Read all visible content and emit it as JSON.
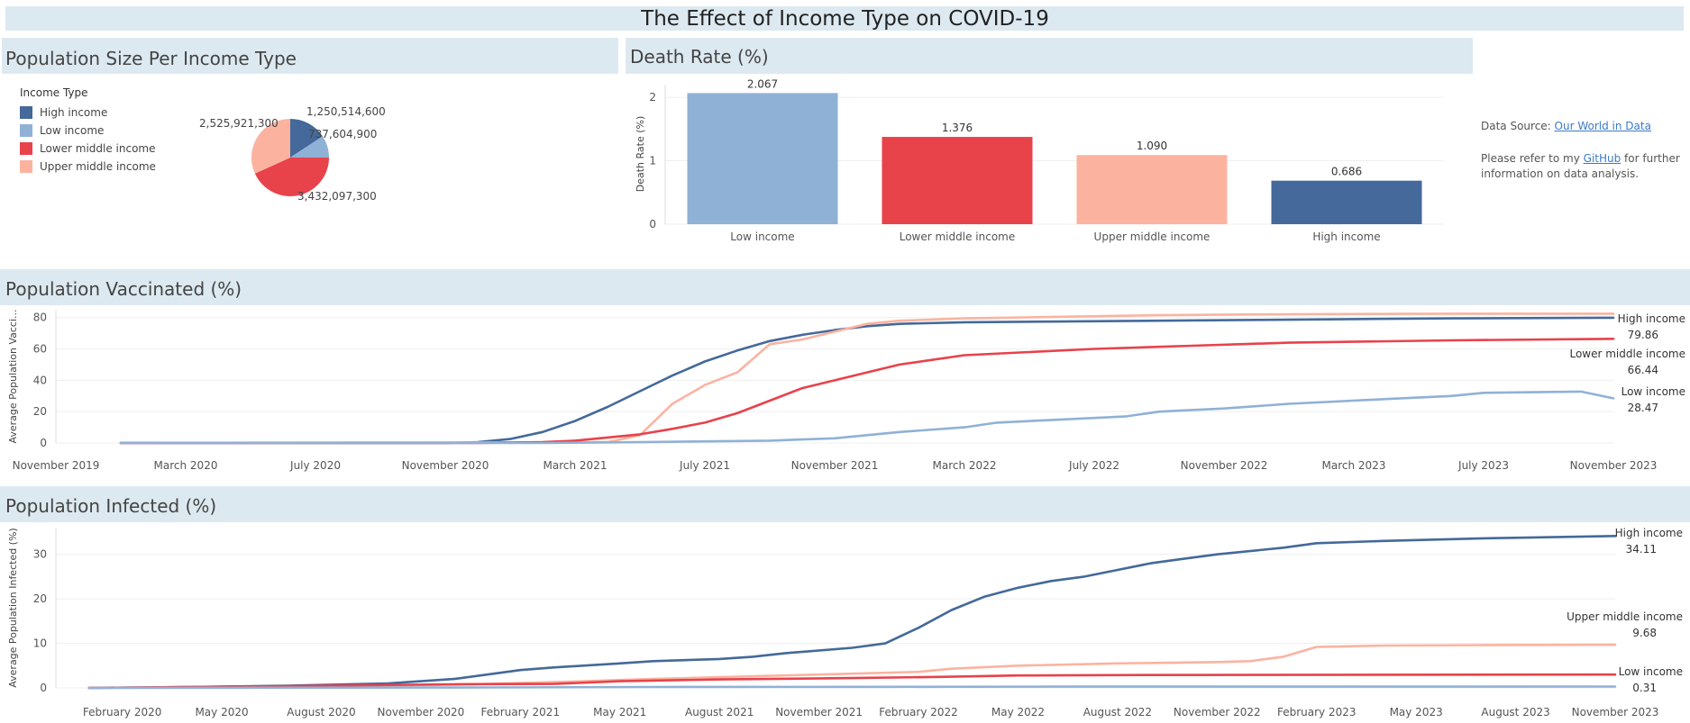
{
  "dashboard": {
    "title": "The Effect of Income Type on COVID-19",
    "sections": {
      "population": "Population Size Per Income Type",
      "death": "Death Rate (%)",
      "vaccinated": "Population Vaccinated (%)",
      "infected": "Population Infected (%)"
    },
    "source": {
      "prefix": "Data Source: ",
      "link": "Our World in Data",
      "refer_prefix": "Please refer to my ",
      "refer_link": "GitHub",
      "refer_suffix": " for further",
      "refer_line2": "information on data analysis."
    }
  },
  "colors": {
    "High income": "#44699a",
    "Low income": "#90b1d6",
    "Lower middle income": "#e8424b",
    "Upper middle income": "#fbb3a0"
  },
  "chart_data": [
    {
      "type": "pie",
      "title": "Population Size Per Income Type",
      "legend_title": "Income Type",
      "legend_placement": "top-left",
      "legend": [
        "High income",
        "Low income",
        "Lower middle income",
        "Upper middle income"
      ],
      "slices": [
        {
          "name": "High income",
          "value": 1250514600,
          "label": "1,250,514,600"
        },
        {
          "name": "Low income",
          "value": 737604900,
          "label": "737,604,900"
        },
        {
          "name": "Lower middle income",
          "value": 3432097300,
          "label": "3,432,097,300"
        },
        {
          "name": "Upper middle income",
          "value": 2525921300,
          "label": "2,525,921,300"
        }
      ]
    },
    {
      "type": "bar",
      "title": "Death Rate (%)",
      "ylabel": "Death Rate (%)",
      "ylim": [
        0,
        2.2
      ],
      "yticks": [
        0,
        1,
        2
      ],
      "categories": [
        "Low income",
        "Lower middle income",
        "Upper middle income",
        "High income"
      ],
      "values": [
        2.067,
        1.376,
        1.09,
        0.686
      ],
      "value_labels": [
        "2.067",
        "1.376",
        "1.090",
        "0.686"
      ]
    },
    {
      "type": "line",
      "title": "Population Vaccinated (%)",
      "ylabel": "Average Population Vacci...",
      "ylim": [
        0,
        85
      ],
      "yticks": [
        0,
        20,
        40,
        60,
        80
      ],
      "xlim": [
        "2019-11",
        "2023-11"
      ],
      "xticks": [
        "November 2019",
        "March 2020",
        "July 2020",
        "November 2020",
        "March 2021",
        "July 2021",
        "November 2021",
        "March 2022",
        "July 2022",
        "November 2022",
        "March 2023",
        "July 2023",
        "November 2023"
      ],
      "series": [
        {
          "name": "High income",
          "end_label": "79.86",
          "points": [
            [
              "2020-01",
              0
            ],
            [
              "2020-11",
              0
            ],
            [
              "2020-12",
              0.5
            ],
            [
              "2021-01",
              2.5
            ],
            [
              "2021-02",
              7
            ],
            [
              "2021-03",
              14
            ],
            [
              "2021-04",
              23
            ],
            [
              "2021-05",
              33
            ],
            [
              "2021-06",
              43
            ],
            [
              "2021-07",
              52
            ],
            [
              "2021-08",
              59
            ],
            [
              "2021-09",
              65
            ],
            [
              "2021-10",
              69
            ],
            [
              "2021-11",
              72
            ],
            [
              "2021-12",
              74.5
            ],
            [
              "2022-01",
              76
            ],
            [
              "2022-03",
              77
            ],
            [
              "2022-06",
              77.5
            ],
            [
              "2022-09",
              78
            ],
            [
              "2022-12",
              78.5
            ],
            [
              "2023-03",
              79
            ],
            [
              "2023-06",
              79.5
            ],
            [
              "2023-11",
              79.86
            ]
          ]
        },
        {
          "name": "Upper middle income",
          "end_label": "",
          "points": [
            [
              "2020-01",
              0
            ],
            [
              "2021-04",
              0.5
            ],
            [
              "2021-05",
              5
            ],
            [
              "2021-06",
              25
            ],
            [
              "2021-07",
              37
            ],
            [
              "2021-08",
              45
            ],
            [
              "2021-09",
              63
            ],
            [
              "2021-10",
              66
            ],
            [
              "2021-11",
              71
            ],
            [
              "2021-12",
              76
            ],
            [
              "2022-01",
              78
            ],
            [
              "2022-03",
              79.5
            ],
            [
              "2022-06",
              80.5
            ],
            [
              "2022-09",
              81.5
            ],
            [
              "2022-12",
              82
            ],
            [
              "2023-06",
              82.5
            ],
            [
              "2023-11",
              82.5
            ]
          ]
        },
        {
          "name": "Lower middle income",
          "end_label": "66.44",
          "points": [
            [
              "2020-01",
              0
            ],
            [
              "2020-12",
              0
            ],
            [
              "2021-02",
              0.5
            ],
            [
              "2021-03",
              1.5
            ],
            [
              "2021-04",
              3.5
            ],
            [
              "2021-05",
              5.5
            ],
            [
              "2021-06",
              9
            ],
            [
              "2021-07",
              13
            ],
            [
              "2021-08",
              19
            ],
            [
              "2021-09",
              27
            ],
            [
              "2021-10",
              35
            ],
            [
              "2021-11",
              40
            ],
            [
              "2021-12",
              45
            ],
            [
              "2022-01",
              50
            ],
            [
              "2022-02",
              53
            ],
            [
              "2022-03",
              56
            ],
            [
              "2022-05",
              58
            ],
            [
              "2022-07",
              60
            ],
            [
              "2022-10",
              62
            ],
            [
              "2023-01",
              64
            ],
            [
              "2023-06",
              65.5
            ],
            [
              "2023-11",
              66.44
            ]
          ]
        },
        {
          "name": "Low income",
          "end_label": "28.47",
          "points": [
            [
              "2020-01",
              0
            ],
            [
              "2021-02",
              0
            ],
            [
              "2021-05",
              0.5
            ],
            [
              "2021-09",
              1.5
            ],
            [
              "2021-11",
              3
            ],
            [
              "2021-12",
              5
            ],
            [
              "2022-01",
              7
            ],
            [
              "2022-03",
              10
            ],
            [
              "2022-04",
              13
            ],
            [
              "2022-06",
              15
            ],
            [
              "2022-08",
              17
            ],
            [
              "2022-09",
              20
            ],
            [
              "2022-11",
              22
            ],
            [
              "2023-01",
              25
            ],
            [
              "2023-04",
              28
            ],
            [
              "2023-06",
              30
            ],
            [
              "2023-07",
              32
            ],
            [
              "2023-10",
              32.8
            ],
            [
              "2023-11",
              28.47
            ]
          ]
        }
      ]
    },
    {
      "type": "line",
      "title": "Population Infected (%)",
      "ylabel": "Average Population Infected (%)",
      "ylim": [
        0,
        36
      ],
      "yticks": [
        0,
        10,
        20,
        30
      ],
      "xlim": [
        "2019-12",
        "2023-11"
      ],
      "xticks": [
        "February 2020",
        "May 2020",
        "August 2020",
        "November 2020",
        "February 2021",
        "May 2021",
        "August 2021",
        "November 2021",
        "February 2022",
        "May 2022",
        "August 2022",
        "November 2022",
        "February 2023",
        "May 2023",
        "August 2023",
        "November 2023"
      ],
      "series": [
        {
          "name": "High income",
          "end_label": "34.11",
          "points": [
            [
              "2020-01",
              0
            ],
            [
              "2020-04",
              0.2
            ],
            [
              "2020-07",
              0.5
            ],
            [
              "2020-10",
              1
            ],
            [
              "2020-12",
              2
            ],
            [
              "2021-01",
              3
            ],
            [
              "2021-02",
              4
            ],
            [
              "2021-03",
              4.6
            ],
            [
              "2021-05",
              5.5
            ],
            [
              "2021-06",
              6
            ],
            [
              "2021-08",
              6.5
            ],
            [
              "2021-09",
              7
            ],
            [
              "2021-10",
              7.8
            ],
            [
              "2021-12",
              9
            ],
            [
              "2022-01",
              10
            ],
            [
              "2022-02",
              13.5
            ],
            [
              "2022-03",
              17.5
            ],
            [
              "2022-04",
              20.5
            ],
            [
              "2022-05",
              22.5
            ],
            [
              "2022-06",
              24
            ],
            [
              "2022-07",
              25
            ],
            [
              "2022-08",
              26.5
            ],
            [
              "2022-09",
              28
            ],
            [
              "2022-10",
              29
            ],
            [
              "2022-11",
              30
            ],
            [
              "2023-01",
              31.5
            ],
            [
              "2023-02",
              32.5
            ],
            [
              "2023-04",
              33
            ],
            [
              "2023-07",
              33.6
            ],
            [
              "2023-11",
              34.11
            ]
          ]
        },
        {
          "name": "Upper middle income",
          "end_label": "9.68",
          "points": [
            [
              "2020-01",
              0
            ],
            [
              "2020-07",
              0.3
            ],
            [
              "2020-12",
              0.7
            ],
            [
              "2021-03",
              1.3
            ],
            [
              "2021-06",
              2
            ],
            [
              "2021-09",
              2.6
            ],
            [
              "2021-12",
              3.2
            ],
            [
              "2022-02",
              3.6
            ],
            [
              "2022-03",
              4.3
            ],
            [
              "2022-05",
              5
            ],
            [
              "2022-08",
              5.5
            ],
            [
              "2022-11",
              5.8
            ],
            [
              "2022-12",
              6
            ],
            [
              "2023-01",
              7
            ],
            [
              "2023-02",
              9.2
            ],
            [
              "2023-04",
              9.5
            ],
            [
              "2023-07",
              9.6
            ],
            [
              "2023-11",
              9.68
            ]
          ]
        },
        {
          "name": "Lower middle income",
          "end_label": "",
          "points": [
            [
              "2020-01",
              0
            ],
            [
              "2020-07",
              0.4
            ],
            [
              "2020-12",
              0.8
            ],
            [
              "2021-03",
              0.9
            ],
            [
              "2021-05",
              1.5
            ],
            [
              "2021-08",
              1.9
            ],
            [
              "2021-12",
              2.2
            ],
            [
              "2022-03",
              2.5
            ],
            [
              "2022-05",
              2.8
            ],
            [
              "2022-09",
              2.9
            ],
            [
              "2023-11",
              3
            ]
          ]
        },
        {
          "name": "Low income",
          "end_label": "0.31",
          "points": [
            [
              "2020-01",
              0
            ],
            [
              "2021-01",
              0.1
            ],
            [
              "2021-06",
              0.2
            ],
            [
              "2022-01",
              0.25
            ],
            [
              "2022-06",
              0.28
            ],
            [
              "2023-11",
              0.31
            ]
          ]
        }
      ]
    }
  ]
}
